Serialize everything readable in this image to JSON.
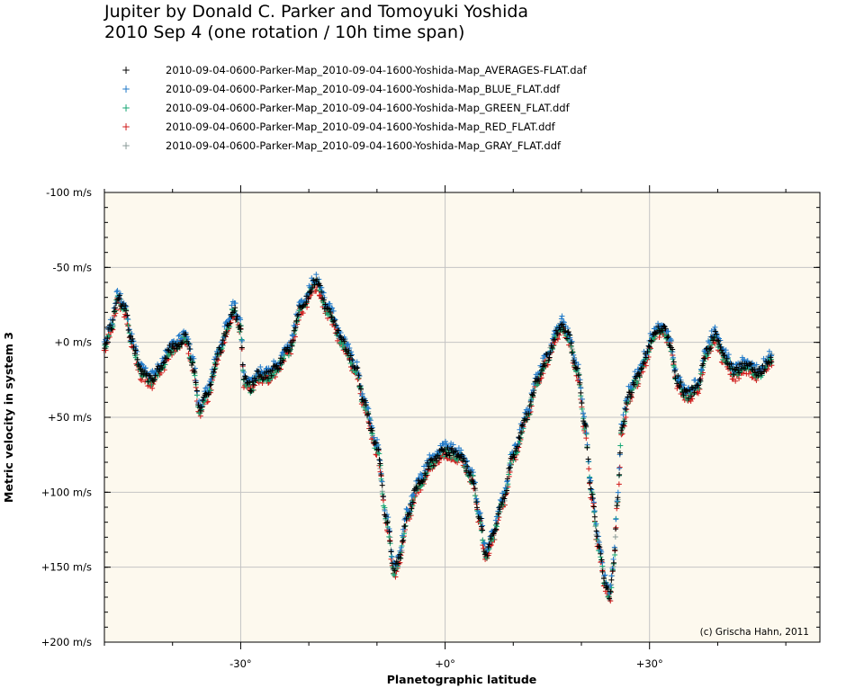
{
  "chart_data": {
    "type": "scatter",
    "title_lines": [
      "Jupiter by Donald C. Parker and Tomoyuki Yoshida",
      "2010 Sep 4 (one rotation / 10h time span)"
    ],
    "xlabel": "Planetographic latitude",
    "ylabel": "Metric velocity in system 3",
    "xlim": [
      -50,
      55
    ],
    "ylim": [
      -100,
      200
    ],
    "y_inverted": true,
    "x_ticks": [
      {
        "value": -30,
        "label": "-30°"
      },
      {
        "value": 0,
        "label": "+0°"
      },
      {
        "value": 30,
        "label": "+30°"
      }
    ],
    "y_ticks": [
      {
        "value": -100,
        "label": "-100 m/s"
      },
      {
        "value": -50,
        "label": "-50 m/s"
      },
      {
        "value": 0,
        "label": "+0 m/s"
      },
      {
        "value": 50,
        "label": "+50 m/s"
      },
      {
        "value": 100,
        "label": "+100 m/s"
      },
      {
        "value": 150,
        "label": "+150 m/s"
      },
      {
        "value": 200,
        "label": "+200 m/s"
      }
    ],
    "grid": true,
    "legend_position": "top-left",
    "credit": "(c) Grischa Hahn, 2011",
    "profile": [
      [
        -50,
        2
      ],
      [
        -49,
        -10
      ],
      [
        -48,
        -30
      ],
      [
        -47,
        -22
      ],
      [
        -46,
        0
      ],
      [
        -44.5,
        20
      ],
      [
        -43,
        25
      ],
      [
        -42,
        18
      ],
      [
        -40,
        3
      ],
      [
        -38,
        -3
      ],
      [
        -37,
        15
      ],
      [
        -36,
        45
      ],
      [
        -35,
        35
      ],
      [
        -33,
        5
      ],
      [
        -32,
        -10
      ],
      [
        -31,
        -22
      ],
      [
        -30,
        -10
      ],
      [
        -29.5,
        25
      ],
      [
        -28.5,
        30
      ],
      [
        -27.5,
        22
      ],
      [
        -26,
        22
      ],
      [
        -25,
        18
      ],
      [
        -23,
        5
      ],
      [
        -21,
        -25
      ],
      [
        -19,
        -40
      ],
      [
        -17,
        -20
      ],
      [
        -15,
        0
      ],
      [
        -13,
        18
      ],
      [
        -12,
        40
      ],
      [
        -10,
        70
      ],
      [
        -8.5,
        120
      ],
      [
        -7.5,
        153
      ],
      [
        -6.8,
        145
      ],
      [
        -5.5,
        115
      ],
      [
        -4,
        95
      ],
      [
        -2,
        80
      ],
      [
        0,
        72
      ],
      [
        2,
        75
      ],
      [
        4,
        90
      ],
      [
        5,
        115
      ],
      [
        6,
        142
      ],
      [
        7,
        128
      ],
      [
        8.5,
        105
      ],
      [
        10,
        75
      ],
      [
        12,
        50
      ],
      [
        13.5,
        25
      ],
      [
        15,
        10
      ],
      [
        16.5,
        -8
      ],
      [
        17.2,
        -12
      ],
      [
        18,
        -5
      ],
      [
        19.5,
        20
      ],
      [
        20.5,
        55
      ],
      [
        21.5,
        100
      ],
      [
        22.5,
        135
      ],
      [
        23.5,
        160
      ],
      [
        24.1,
        170
      ],
      [
        24.8,
        145
      ],
      [
        25.2,
        110
      ],
      [
        26,
        55
      ],
      [
        27,
        35
      ],
      [
        28,
        25
      ],
      [
        29.5,
        10
      ],
      [
        30.5,
        -5
      ],
      [
        32,
        -10
      ],
      [
        33,
        0
      ],
      [
        34,
        25
      ],
      [
        35.5,
        35
      ],
      [
        37,
        30
      ],
      [
        38.5,
        5
      ],
      [
        39.5,
        -5
      ],
      [
        41,
        10
      ],
      [
        42.5,
        20
      ],
      [
        44,
        15
      ],
      [
        46,
        20
      ],
      [
        48,
        10
      ]
    ],
    "series": [
      {
        "name": "2010-09-04-0600-Parker-Map_2010-09-04-1600-Yoshida-Map_AVERAGES-FLAT.daf",
        "color": "#000000",
        "marker": "+",
        "offset": 0
      },
      {
        "name": "2010-09-04-0600-Parker-Map_2010-09-04-1600-Yoshida-Map_BLUE_FLAT.ddf",
        "color": "#1f78c8",
        "marker": "+",
        "offset": -3
      },
      {
        "name": "2010-09-04-0600-Parker-Map_2010-09-04-1600-Yoshida-Map_GREEN_FLAT.ddf",
        "color": "#16a673",
        "marker": "+",
        "offset": 1
      },
      {
        "name": "2010-09-04-0600-Parker-Map_2010-09-04-1600-Yoshida-Map_RED_FLAT.ddf",
        "color": "#d01818",
        "marker": "+",
        "offset": 3
      },
      {
        "name": "2010-09-04-0600-Parker-Map_2010-09-04-1600-Yoshida-Map_GRAY_FLAT.ddf",
        "color": "#8a9a98",
        "marker": "+",
        "offset": 0
      }
    ]
  }
}
